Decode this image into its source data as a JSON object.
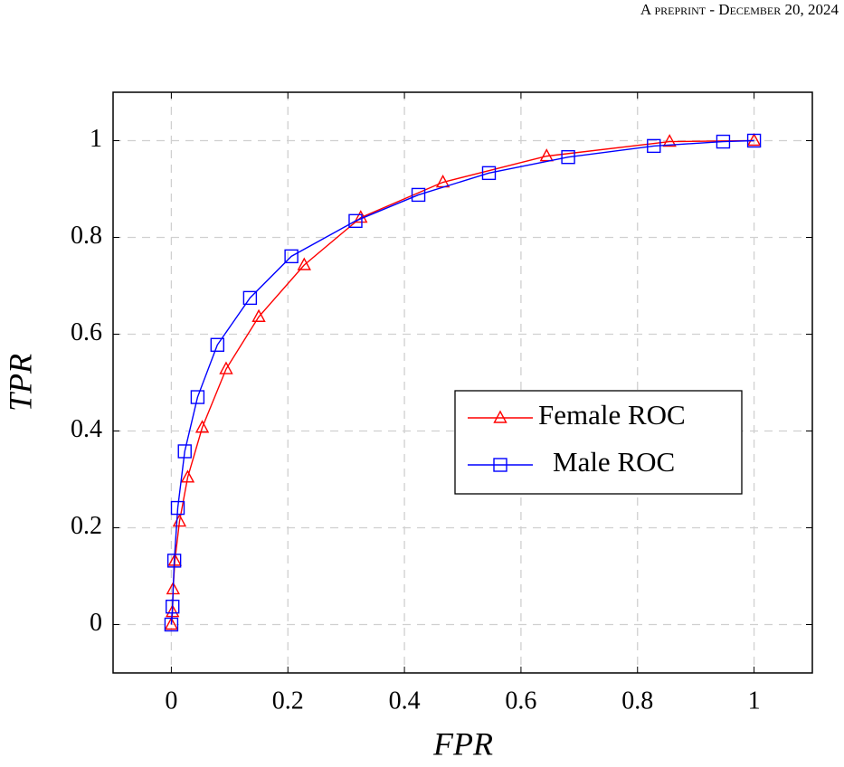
{
  "header": "A preprint - December 20, 2024",
  "chart_data": {
    "type": "line",
    "x_label": "FPR",
    "y_label": "TPR",
    "xlim": [
      -0.1,
      1.1
    ],
    "ylim": [
      -0.1,
      1.1
    ],
    "xticks": [
      0,
      0.2,
      0.4,
      0.6,
      0.8,
      1
    ],
    "yticks": [
      0,
      0.2,
      0.4,
      0.6,
      0.8,
      1
    ],
    "grid": true,
    "legend_position": "east",
    "series": [
      {
        "name": "Female ROC",
        "color": "#ff0000",
        "marker": "triangle",
        "x": [
          0,
          0.002,
          0.003,
          0.006,
          0.014,
          0.028,
          0.053,
          0.094,
          0.15,
          0.228,
          0.325,
          0.466,
          0.644,
          0.855,
          1
        ],
        "values": [
          0,
          0.026,
          0.073,
          0.132,
          0.213,
          0.304,
          0.407,
          0.528,
          0.636,
          0.743,
          0.841,
          0.914,
          0.968,
          0.998,
          1
        ]
      },
      {
        "name": "Male ROC",
        "color": "#0000ff",
        "marker": "square",
        "x": [
          0,
          0.002,
          0.005,
          0.011,
          0.023,
          0.045,
          0.079,
          0.135,
          0.206,
          0.316,
          0.424,
          0.545,
          0.681,
          0.828,
          0.947,
          1
        ],
        "values": [
          0,
          0.037,
          0.132,
          0.241,
          0.358,
          0.47,
          0.578,
          0.675,
          0.761,
          0.834,
          0.888,
          0.933,
          0.966,
          0.989,
          0.998,
          1
        ]
      }
    ]
  }
}
